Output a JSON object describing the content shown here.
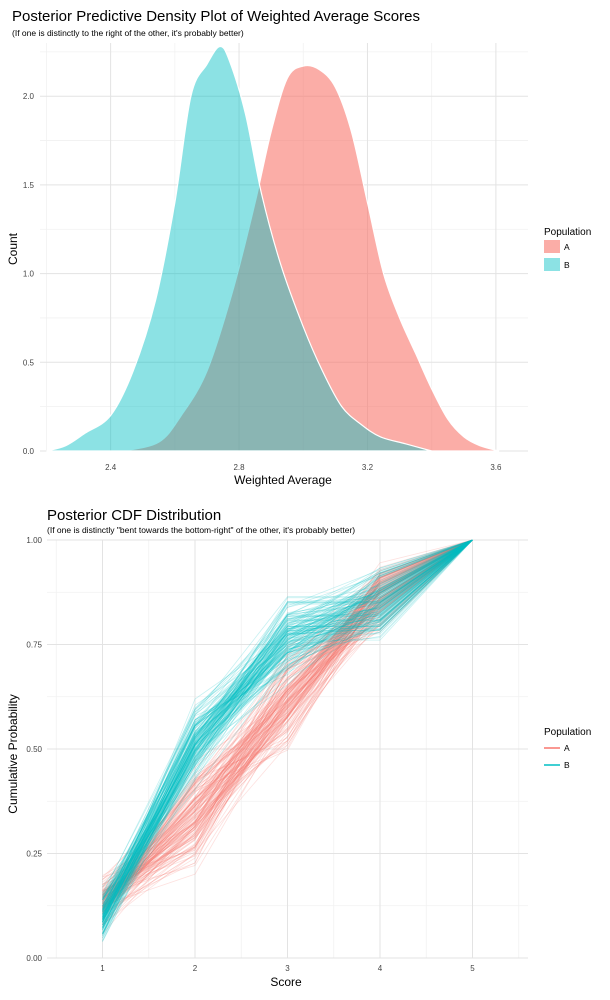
{
  "chart_data": [
    {
      "type": "area",
      "title": "Posterior Predictive Density Plot of Weighted Average Scores",
      "subtitle": "(If one is distinctly to the right of the other, it's probably better)",
      "xlabel": "Weighted Average",
      "ylabel": "Count",
      "xlim": [
        2.18,
        3.7
      ],
      "ylim": [
        0,
        2.3
      ],
      "x_ticks": [
        "2.4",
        "2.8",
        "3.2",
        "3.6"
      ],
      "y_ticks": [
        "0.0",
        "0.5",
        "1.0",
        "1.5",
        "2.0"
      ],
      "legend": {
        "title": "Population",
        "position": "right",
        "entries": [
          "A",
          "B"
        ]
      },
      "colors": {
        "A": "#f8766d",
        "B": "#00bfc4"
      },
      "series": [
        {
          "name": "A",
          "x": [
            2.44,
            2.55,
            2.62,
            2.7,
            2.78,
            2.85,
            2.9,
            2.95,
            3.0,
            3.05,
            3.1,
            3.15,
            3.2,
            3.25,
            3.3,
            3.35,
            3.4,
            3.45,
            3.5,
            3.55,
            3.61
          ],
          "y": [
            0.0,
            0.05,
            0.2,
            0.45,
            0.9,
            1.4,
            1.8,
            2.1,
            2.17,
            2.15,
            2.05,
            1.8,
            1.4,
            1.0,
            0.75,
            0.55,
            0.35,
            0.18,
            0.08,
            0.03,
            0.0
          ]
        },
        {
          "name": "B",
          "x": [
            2.2,
            2.26,
            2.32,
            2.4,
            2.47,
            2.54,
            2.6,
            2.65,
            2.7,
            2.74,
            2.77,
            2.82,
            2.87,
            2.93,
            3.0,
            3.06,
            3.12,
            3.18,
            3.24,
            3.32,
            3.4
          ],
          "y": [
            0.0,
            0.03,
            0.1,
            0.2,
            0.45,
            0.85,
            1.4,
            2.0,
            2.18,
            2.28,
            2.2,
            1.9,
            1.45,
            1.05,
            0.7,
            0.45,
            0.25,
            0.15,
            0.08,
            0.04,
            0.0
          ]
        }
      ]
    },
    {
      "type": "line",
      "title": "Posterior CDF Distribution",
      "subtitle": "(If one is distinctly \"bent towards the bottom-right\" of the other, it's probably better)",
      "xlabel": "Score",
      "ylabel": "Cumulative Probability",
      "x": [
        1,
        2,
        3,
        4,
        5
      ],
      "xlim": [
        0.4,
        5.6
      ],
      "ylim": [
        0,
        1
      ],
      "x_ticks": [
        "1",
        "2",
        "3",
        "4",
        "5"
      ],
      "y_ticks": [
        "0.00",
        "0.25",
        "0.50",
        "0.75",
        "1.00"
      ],
      "legend": {
        "title": "Population",
        "position": "right",
        "entries": [
          "A",
          "B"
        ]
      },
      "colors": {
        "A": "#f8766d",
        "B": "#00bfc4"
      },
      "series": [
        {
          "name": "A",
          "draws": 150,
          "mean": [
            0.13,
            0.34,
            0.62,
            0.87,
            1.0
          ],
          "spread": [
            0.04,
            0.07,
            0.07,
            0.05,
            0.0
          ]
        },
        {
          "name": "B",
          "draws": 150,
          "mean": [
            0.1,
            0.52,
            0.76,
            0.84,
            1.0
          ],
          "spread": [
            0.04,
            0.07,
            0.06,
            0.06,
            0.0
          ]
        }
      ]
    }
  ]
}
